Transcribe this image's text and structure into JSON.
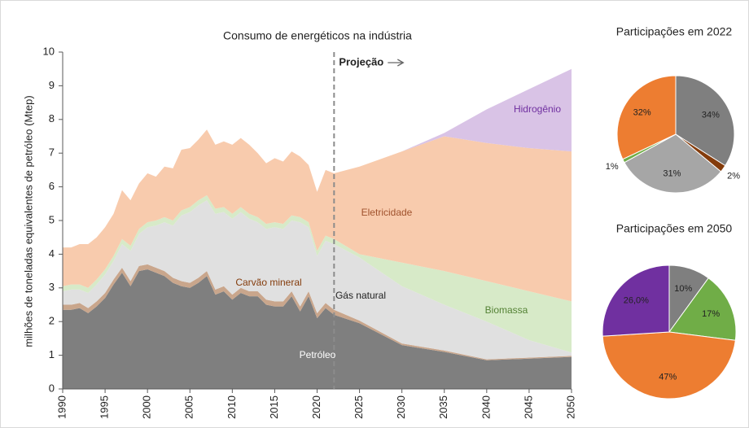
{
  "chart_data": [
    {
      "type": "area",
      "title": "Consumo de energéticos na indústria",
      "ylabel": "milhões de toneladas equivalentes de petróleo (Mtep)",
      "annotation": "Projeção",
      "projection_start": 2022,
      "x": [
        1990,
        1991,
        1992,
        1993,
        1994,
        1995,
        1996,
        1997,
        1998,
        1999,
        2000,
        2001,
        2002,
        2003,
        2004,
        2005,
        2006,
        2007,
        2008,
        2009,
        2010,
        2011,
        2012,
        2013,
        2014,
        2015,
        2016,
        2017,
        2018,
        2019,
        2020,
        2021,
        2022,
        2025,
        2030,
        2035,
        2040,
        2045,
        2050
      ],
      "xlim": [
        1990,
        2050
      ],
      "xticks": [
        1990,
        1995,
        2000,
        2005,
        2010,
        2015,
        2020,
        2025,
        2030,
        2035,
        2040,
        2045,
        2050
      ],
      "ylim": [
        0,
        10
      ],
      "yticks": [
        0,
        1,
        2,
        3,
        4,
        5,
        6,
        7,
        8,
        9,
        10
      ],
      "grid": false,
      "stacked": true,
      "series": [
        {
          "name": "Petróleo",
          "color": "#7f7f7f",
          "values": [
            2.35,
            2.35,
            2.4,
            2.25,
            2.45,
            2.7,
            3.1,
            3.45,
            3.05,
            3.5,
            3.55,
            3.45,
            3.35,
            3.15,
            3.05,
            3.0,
            3.15,
            3.35,
            2.8,
            2.9,
            2.65,
            2.85,
            2.75,
            2.75,
            2.5,
            2.45,
            2.45,
            2.75,
            2.3,
            2.75,
            2.1,
            2.4,
            2.2,
            1.95,
            1.3,
            1.1,
            0.85,
            0.9,
            0.95
          ]
        },
        {
          "name": "Carvão mineral",
          "color": "#c9a68c",
          "values": [
            0.15,
            0.15,
            0.15,
            0.15,
            0.15,
            0.15,
            0.15,
            0.15,
            0.15,
            0.15,
            0.15,
            0.15,
            0.15,
            0.15,
            0.15,
            0.15,
            0.15,
            0.15,
            0.15,
            0.15,
            0.15,
            0.15,
            0.15,
            0.15,
            0.15,
            0.15,
            0.15,
            0.15,
            0.15,
            0.15,
            0.15,
            0.15,
            0.15,
            0.08,
            0.05,
            0.04,
            0.03,
            0.03,
            0.03
          ]
        },
        {
          "name": "Gás natural",
          "color": "#e0e0e0",
          "values": [
            0.4,
            0.45,
            0.4,
            0.45,
            0.5,
            0.55,
            0.55,
            0.7,
            0.9,
            0.95,
            1.1,
            1.25,
            1.45,
            1.55,
            1.95,
            2.1,
            2.15,
            2.1,
            2.25,
            2.2,
            2.25,
            2.25,
            2.15,
            2.05,
            2.1,
            2.2,
            2.15,
            2.1,
            2.5,
            1.9,
            1.7,
            1.85,
            1.95,
            1.87,
            1.7,
            1.36,
            1.12,
            0.52,
            0.1
          ]
        },
        {
          "name": "Biomassa",
          "color": "#d7eac8",
          "values": [
            0.15,
            0.15,
            0.15,
            0.15,
            0.15,
            0.15,
            0.15,
            0.15,
            0.15,
            0.15,
            0.15,
            0.15,
            0.15,
            0.15,
            0.15,
            0.15,
            0.15,
            0.15,
            0.15,
            0.15,
            0.15,
            0.15,
            0.15,
            0.15,
            0.15,
            0.15,
            0.15,
            0.15,
            0.15,
            0.15,
            0.15,
            0.15,
            0.15,
            0.1,
            0.7,
            1.0,
            1.2,
            1.45,
            1.52
          ]
        },
        {
          "name": "Eletricidade",
          "color": "#f8cbad",
          "values": [
            1.15,
            1.1,
            1.2,
            1.3,
            1.25,
            1.25,
            1.25,
            1.45,
            1.35,
            1.35,
            1.45,
            1.3,
            1.5,
            1.55,
            1.8,
            1.75,
            1.8,
            1.95,
            1.9,
            1.95,
            2.05,
            2.05,
            2.05,
            1.9,
            1.8,
            1.9,
            1.85,
            1.9,
            1.8,
            1.7,
            1.75,
            1.95,
            1.95,
            2.6,
            3.3,
            4.0,
            4.1,
            4.25,
            4.45
          ]
        },
        {
          "name": "Hidrogênio",
          "color": "#d9c3e6",
          "values": [
            0,
            0,
            0,
            0,
            0,
            0,
            0,
            0,
            0,
            0,
            0,
            0,
            0,
            0,
            0,
            0,
            0,
            0,
            0,
            0,
            0,
            0,
            0,
            0,
            0,
            0,
            0,
            0,
            0,
            0,
            0,
            0,
            0,
            0,
            0,
            0.1,
            1.0,
            1.75,
            2.45
          ]
        }
      ]
    },
    {
      "type": "pie",
      "title": "Participações em 2022",
      "categories": [
        "Petróleo",
        "Carvão mineral",
        "Gás natural",
        "Biomassa",
        "Eletricidade"
      ],
      "values": [
        34,
        2,
        31,
        1,
        32
      ],
      "value_labels": [
        "34%",
        "2%",
        "31%",
        "1%",
        "32%"
      ],
      "colors": [
        "#7f7f7f",
        "#843c0c",
        "#a6a6a6",
        "#70ad47",
        "#ed7d31"
      ]
    },
    {
      "type": "pie",
      "title": "Participações em 2050",
      "categories": [
        "Petróleo",
        "Biomassa",
        "Eletricidade",
        "Hidrogênio"
      ],
      "values": [
        10,
        17,
        47,
        26
      ],
      "value_labels": [
        "10%",
        "17%",
        "47%",
        "26,0%"
      ],
      "colors": [
        "#7f7f7f",
        "#70ad47",
        "#ed7d31",
        "#7030a0"
      ]
    }
  ]
}
